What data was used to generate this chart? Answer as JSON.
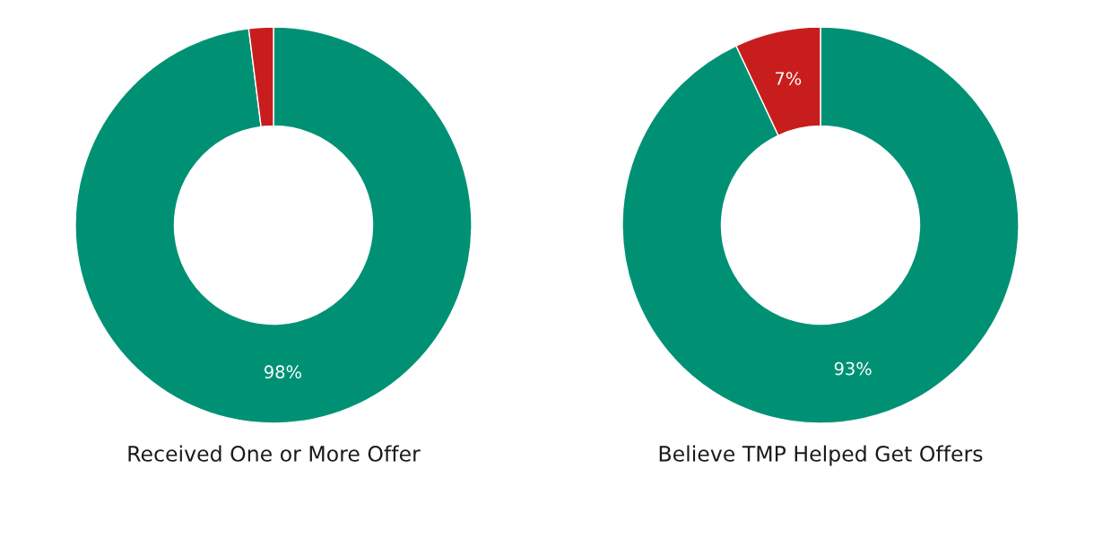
{
  "chart_data": [
    {
      "type": "donut",
      "title": "Received One or More Offer",
      "categories": [
        null,
        null
      ],
      "values": [
        98,
        2
      ],
      "colors": [
        "#009175",
        "#c71e1d"
      ],
      "value_labels": [
        "98%",
        null
      ]
    },
    {
      "type": "donut",
      "title": "Believe TMP Helped Get Offers",
      "categories": [
        null,
        null
      ],
      "values": [
        93,
        7
      ],
      "colors": [
        "#009175",
        "#c71e1d"
      ],
      "value_labels": [
        "93%",
        "7%"
      ]
    }
  ]
}
